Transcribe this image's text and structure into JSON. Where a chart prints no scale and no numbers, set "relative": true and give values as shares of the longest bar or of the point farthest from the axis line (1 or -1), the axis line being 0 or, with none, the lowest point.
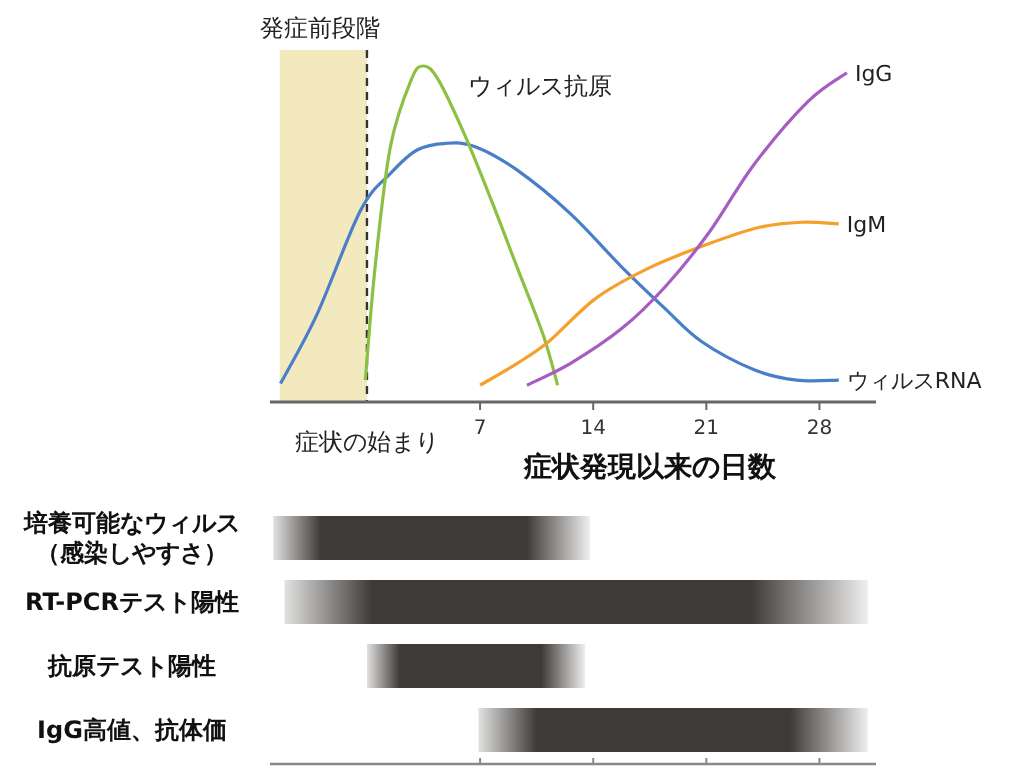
{
  "chart_data": [
    {
      "type": "line",
      "relative": true,
      "xlabel": "症状発現以来の日数",
      "xlim": [
        -6,
        31.5
      ],
      "xticks": [
        7,
        14,
        21,
        28
      ],
      "series": [
        {
          "name": "ウィルスRNA",
          "color": "#4a7ec9",
          "x": [
            -5.35,
            -3.1,
            -0.4,
            1.45,
            3.1,
            4.9,
            6.7,
            9.3,
            12.6,
            15.8,
            18.4,
            20.7,
            24,
            26.6,
            29.2
          ],
          "values": [
            0.055,
            0.26,
            0.57,
            0.68,
            0.75,
            0.77,
            0.76,
            0.69,
            0.56,
            0.4,
            0.28,
            0.18,
            0.095,
            0.065,
            0.065
          ]
        },
        {
          "name": "ウィルス抗原",
          "color": "#8dc042",
          "x": [
            -0.1,
            0.5,
            1.45,
            2.75,
            3.5,
            4.4,
            6,
            7.7,
            9.3,
            10.9,
            11.8
          ],
          "values": [
            0.065,
            0.4,
            0.76,
            0.96,
            1,
            0.96,
            0.8,
            0.6,
            0.4,
            0.2,
            0.05
          ]
        },
        {
          "name": "IgM",
          "color": "#f5a02a",
          "x": [
            7,
            9.3,
            11.25,
            14.2,
            17.5,
            21.1,
            24.3,
            26.9,
            29.2
          ],
          "values": [
            0.05,
            0.115,
            0.18,
            0.31,
            0.4,
            0.47,
            0.52,
            0.535,
            0.53
          ]
        },
        {
          "name": "IgG",
          "color": "#a65cc0",
          "x": [
            9.9,
            12.6,
            15.8,
            18.4,
            21.1,
            24,
            27.3,
            29.7
          ],
          "values": [
            0.05,
            0.115,
            0.22,
            0.34,
            0.5,
            0.71,
            0.895,
            0.98
          ]
        }
      ],
      "bands": [
        {
          "axis": "x",
          "from": -5.4,
          "to": 0,
          "label": "発症前段階",
          "color": "#f3e9bf"
        }
      ],
      "ref_lines": [
        {
          "axis": "x",
          "value": 0,
          "label": "症状の始まり",
          "line_style": "dashed",
          "color": "#333333"
        }
      ]
    },
    {
      "type": "bar",
      "orientation": "horizontal",
      "tick_labels": "y",
      "xlim": [
        -6,
        31.5
      ],
      "xticks": [
        7,
        14,
        21,
        28
      ],
      "color": "#3e3a37",
      "categories": [
        "培養可能なウィルス（感染しやすさ）",
        "RT-PCRテスト陽性",
        "抗原テスト陽性",
        "IgG高値、抗体価"
      ],
      "base": [
        -5.8,
        -5.1,
        0,
        6.9
      ],
      "values": [
        19.6,
        36.1,
        13.5,
        24.1
      ]
    }
  ]
}
